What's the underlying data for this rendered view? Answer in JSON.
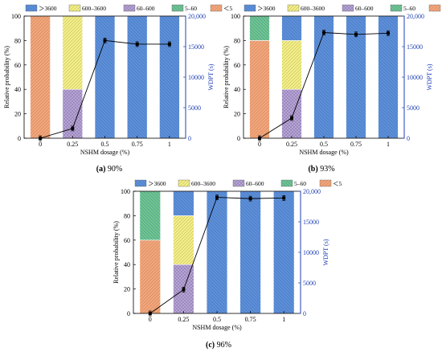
{
  "chart_data": [
    {
      "type": "bar",
      "caption_label": "(a)",
      "caption_text": "90%",
      "xlabel": "NSHM dosage (%)",
      "ylabel": "Relative probability (%)",
      "ylabel_right": "WDPT (s)",
      "categories": [
        "0",
        "0.25",
        "0.5",
        "0.75",
        "1"
      ],
      "ylim": [
        0,
        100
      ],
      "ylim_right": [
        0,
        20000
      ],
      "yticks": [
        0,
        20,
        40,
        60,
        80,
        100
      ],
      "yticks_right": [
        "0",
        "5000",
        "10000",
        "15000",
        "20,000"
      ],
      "legend_position": "top",
      "series": [
        {
          "name": "＞3600",
          "color": "#5b8fd8",
          "hatch": "back",
          "values": [
            0,
            0,
            100,
            100,
            100
          ]
        },
        {
          "name": "600–3600",
          "color": "#f2ee86",
          "hatch": "fwd",
          "values": [
            0,
            60,
            0,
            0,
            0
          ]
        },
        {
          "name": "60–600",
          "color": "#b7a4d6",
          "hatch": "cross",
          "values": [
            0,
            40,
            0,
            0,
            0
          ]
        },
        {
          "name": "5–60",
          "color": "#6cc48f",
          "hatch": "back",
          "values": [
            0,
            0,
            0,
            0,
            0
          ]
        },
        {
          "name": "＜5",
          "color": "#f4a47a",
          "hatch": "fwd",
          "values": [
            100,
            0,
            0,
            0,
            0
          ]
        }
      ],
      "line": {
        "name": "WDPT",
        "color": "#000000",
        "values": [
          0,
          1600,
          16000,
          15400,
          15400
        ]
      }
    },
    {
      "type": "bar",
      "caption_label": "(b)",
      "caption_text": "93%",
      "xlabel": "NSHM dosage (%)",
      "ylabel": "Relative probability (%)",
      "ylabel_right": "WDPT (s)",
      "categories": [
        "0",
        "0.25",
        "0.5",
        "0.75",
        "1"
      ],
      "ylim": [
        0,
        100
      ],
      "ylim_right": [
        0,
        20000
      ],
      "yticks": [
        0,
        20,
        40,
        60,
        80,
        100
      ],
      "yticks_right": [
        "0",
        "5000",
        "10000",
        "15000",
        "20,000"
      ],
      "legend_position": "top",
      "series": [
        {
          "name": "＞3600",
          "color": "#5b8fd8",
          "hatch": "back",
          "values": [
            0,
            20,
            100,
            100,
            100
          ]
        },
        {
          "name": "600–3600",
          "color": "#f2ee86",
          "hatch": "fwd",
          "values": [
            0,
            40,
            0,
            0,
            0
          ]
        },
        {
          "name": "60–600",
          "color": "#b7a4d6",
          "hatch": "cross",
          "values": [
            0,
            40,
            0,
            0,
            0
          ]
        },
        {
          "name": "5–60",
          "color": "#6cc48f",
          "hatch": "back",
          "values": [
            20,
            0,
            0,
            0,
            0
          ]
        },
        {
          "name": "＜5",
          "color": "#f4a47a",
          "hatch": "fwd",
          "values": [
            80,
            0,
            0,
            0,
            0
          ]
        }
      ],
      "line": {
        "name": "WDPT",
        "color": "#000000",
        "values": [
          0,
          3300,
          17300,
          17000,
          17200
        ]
      }
    },
    {
      "type": "bar",
      "caption_label": "(c)",
      "caption_text": "96%",
      "xlabel": "NSHM dosage (%)",
      "ylabel": "Relative probability (%)",
      "ylabel_right": "WDPT (s)",
      "categories": [
        "0",
        "0.25",
        "0.5",
        "0.75",
        "1"
      ],
      "ylim": [
        0,
        100
      ],
      "ylim_right": [
        0,
        20000
      ],
      "yticks": [
        0,
        20,
        40,
        60,
        80,
        100
      ],
      "yticks_right": [
        "0",
        "5000",
        "10000",
        "15000",
        "20,000"
      ],
      "legend_position": "top",
      "series": [
        {
          "name": "＞3600",
          "color": "#5b8fd8",
          "hatch": "back",
          "values": [
            0,
            20,
            100,
            100,
            100
          ]
        },
        {
          "name": "600–3600",
          "color": "#f2ee86",
          "hatch": "fwd",
          "values": [
            0,
            40,
            0,
            0,
            0
          ]
        },
        {
          "name": "60–600",
          "color": "#b7a4d6",
          "hatch": "cross",
          "values": [
            0,
            40,
            0,
            0,
            0
          ]
        },
        {
          "name": "5–60",
          "color": "#6cc48f",
          "hatch": "back",
          "values": [
            40,
            0,
            0,
            0,
            0
          ]
        },
        {
          "name": "＜5",
          "color": "#f4a47a",
          "hatch": "fwd",
          "values": [
            60,
            0,
            0,
            0,
            0
          ]
        }
      ],
      "line": {
        "name": "WDPT",
        "color": "#000000",
        "values": [
          0,
          3900,
          19000,
          18800,
          18900
        ]
      }
    }
  ]
}
